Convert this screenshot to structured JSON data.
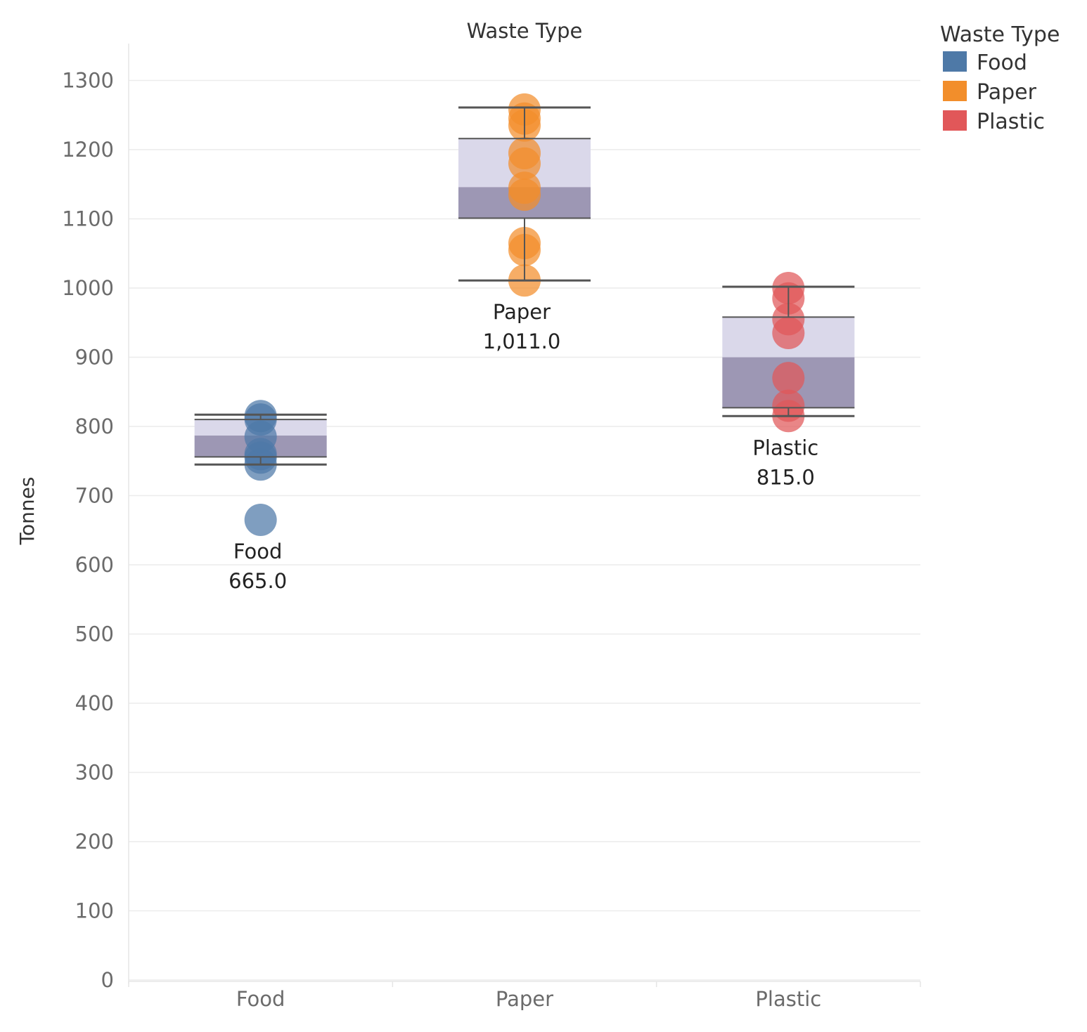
{
  "chart_data": {
    "type": "box",
    "title": "Waste Type",
    "xlabel": "",
    "ylabel": "Tonnes",
    "ylim": [
      0,
      1330
    ],
    "yticks": [
      0,
      100,
      200,
      300,
      400,
      500,
      600,
      700,
      800,
      900,
      1000,
      1100,
      1200,
      1300
    ],
    "categories": [
      "Food",
      "Paper",
      "Plastic"
    ],
    "legend": {
      "title": "Waste Type",
      "position": "top-right",
      "entries": [
        {
          "label": "Food",
          "color": "#4e79a7"
        },
        {
          "label": "Paper",
          "color": "#f28e2b"
        },
        {
          "label": "Plastic",
          "color": "#e15759"
        }
      ]
    },
    "series": [
      {
        "name": "Food",
        "color": "#4e79a7",
        "points": [
          665,
          745,
          755,
          760,
          785,
          810,
          815
        ],
        "box": {
          "whisker_low": 745,
          "q1": 756,
          "median": 787,
          "q3": 810,
          "whisker_high": 817
        },
        "label_name": "Food",
        "label_value": "665.0"
      },
      {
        "name": "Paper",
        "color": "#f28e2b",
        "points": [
          1011,
          1055,
          1065,
          1135,
          1145,
          1180,
          1195,
          1235,
          1245,
          1258
        ],
        "box": {
          "whisker_low": 1011,
          "q1": 1101,
          "median": 1146,
          "q3": 1216,
          "whisker_high": 1261
        },
        "label_name": "Paper",
        "label_value": "1,011.0"
      },
      {
        "name": "Plastic",
        "color": "#e15759",
        "points": [
          815,
          830,
          870,
          935,
          955,
          985,
          1000
        ],
        "box": {
          "whisker_low": 815,
          "q1": 827,
          "median": 900,
          "q3": 958,
          "whisker_high": 1002
        },
        "label_name": "Plastic",
        "label_value": "815.0"
      }
    ]
  }
}
